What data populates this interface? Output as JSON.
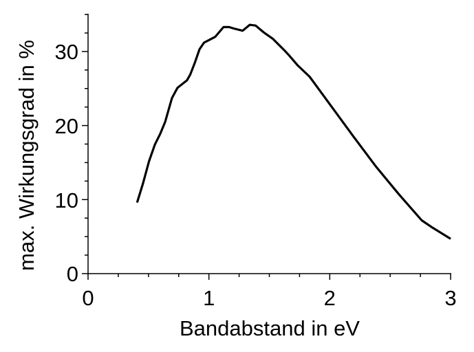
{
  "chart_data": {
    "type": "line",
    "title": "",
    "xlabel": "Bandabstand in eV",
    "ylabel": "max. Wirkungsgrad in %",
    "xlim": [
      0,
      3
    ],
    "ylim": [
      0,
      35
    ],
    "xticks": [
      "0",
      "1",
      "2",
      "3"
    ],
    "yticks": [
      "0",
      "10",
      "20",
      "30"
    ],
    "grid": false,
    "line_color": "#000000",
    "series": [
      {
        "x": [
          0.406,
          0.455,
          0.505,
          0.552,
          0.598,
          0.638,
          0.694,
          0.74,
          0.818,
          0.846,
          0.882,
          0.922,
          0.96,
          0.996,
          1.053,
          1.121,
          1.167,
          1.207,
          1.279,
          1.338,
          1.387,
          1.452,
          1.53,
          1.622,
          1.662,
          1.736,
          1.833,
          2.004,
          2.192,
          2.385,
          2.573,
          2.761,
          2.841,
          3.0
        ],
        "y": [
          9.6,
          12.2,
          15.2,
          17.4,
          18.9,
          20.5,
          23.7,
          25.1,
          26.1,
          26.9,
          28.4,
          30.3,
          31.2,
          31.5,
          32.0,
          33.3,
          33.3,
          33.1,
          32.8,
          33.6,
          33.5,
          32.6,
          31.7,
          30.2,
          29.5,
          28.1,
          26.6,
          22.8,
          18.6,
          14.4,
          10.7,
          7.2,
          6.3,
          4.7
        ]
      }
    ]
  }
}
